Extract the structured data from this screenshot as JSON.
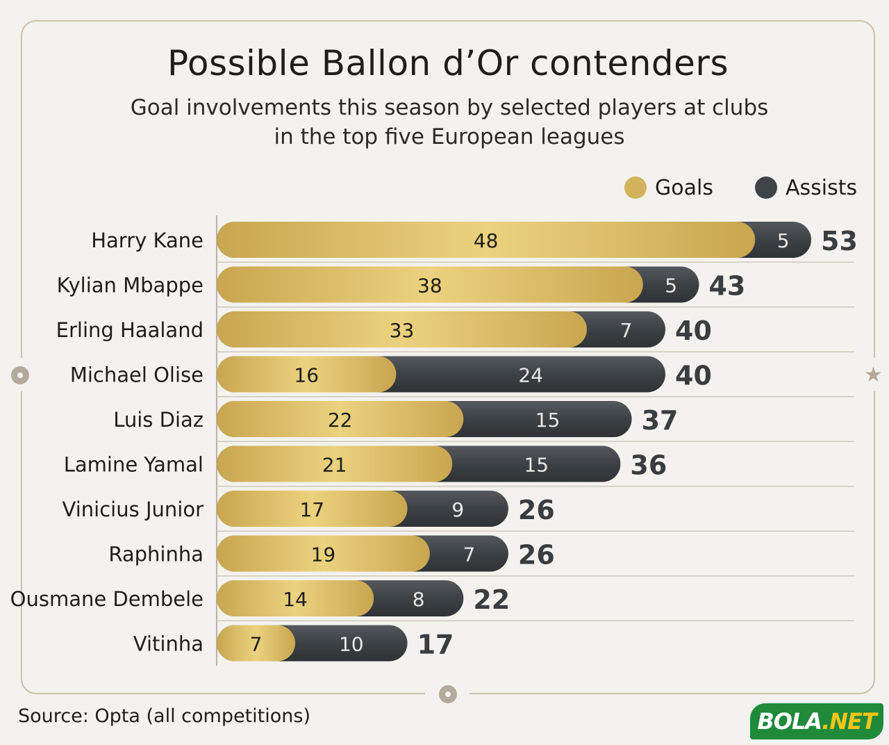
{
  "chart_data": {
    "type": "bar",
    "orientation": "horizontal",
    "stacked": true,
    "title": "Possible Ballon d’Or contenders",
    "subtitle_lines": [
      "Goal involvements this season by selected players at clubs",
      "in the top five European leagues"
    ],
    "categories": [
      "Harry Kane",
      "Kylian Mbappe",
      "Erling Haaland",
      "Michael Olise",
      "Luis Diaz",
      "Lamine Yamal",
      "Vinicius Junior",
      "Raphinha",
      "Ousmane Dembele",
      "Vitinha"
    ],
    "series": [
      {
        "name": "Goals",
        "color": "#d2b25c",
        "values": [
          48,
          38,
          33,
          16,
          22,
          21,
          17,
          19,
          14,
          7
        ]
      },
      {
        "name": "Assists",
        "color": "#3f4448",
        "values": [
          5,
          5,
          7,
          24,
          15,
          15,
          9,
          7,
          8,
          10
        ]
      }
    ],
    "totals": [
      53,
      43,
      40,
      40,
      37,
      36,
      26,
      26,
      22,
      17
    ],
    "legend_position": "top-right",
    "grid": false,
    "xlim": [
      0,
      53
    ]
  },
  "footer": {
    "source": "Source: Opta (all competitions)"
  },
  "logo": {
    "part1": "BOLA",
    "part2": ".NET"
  }
}
